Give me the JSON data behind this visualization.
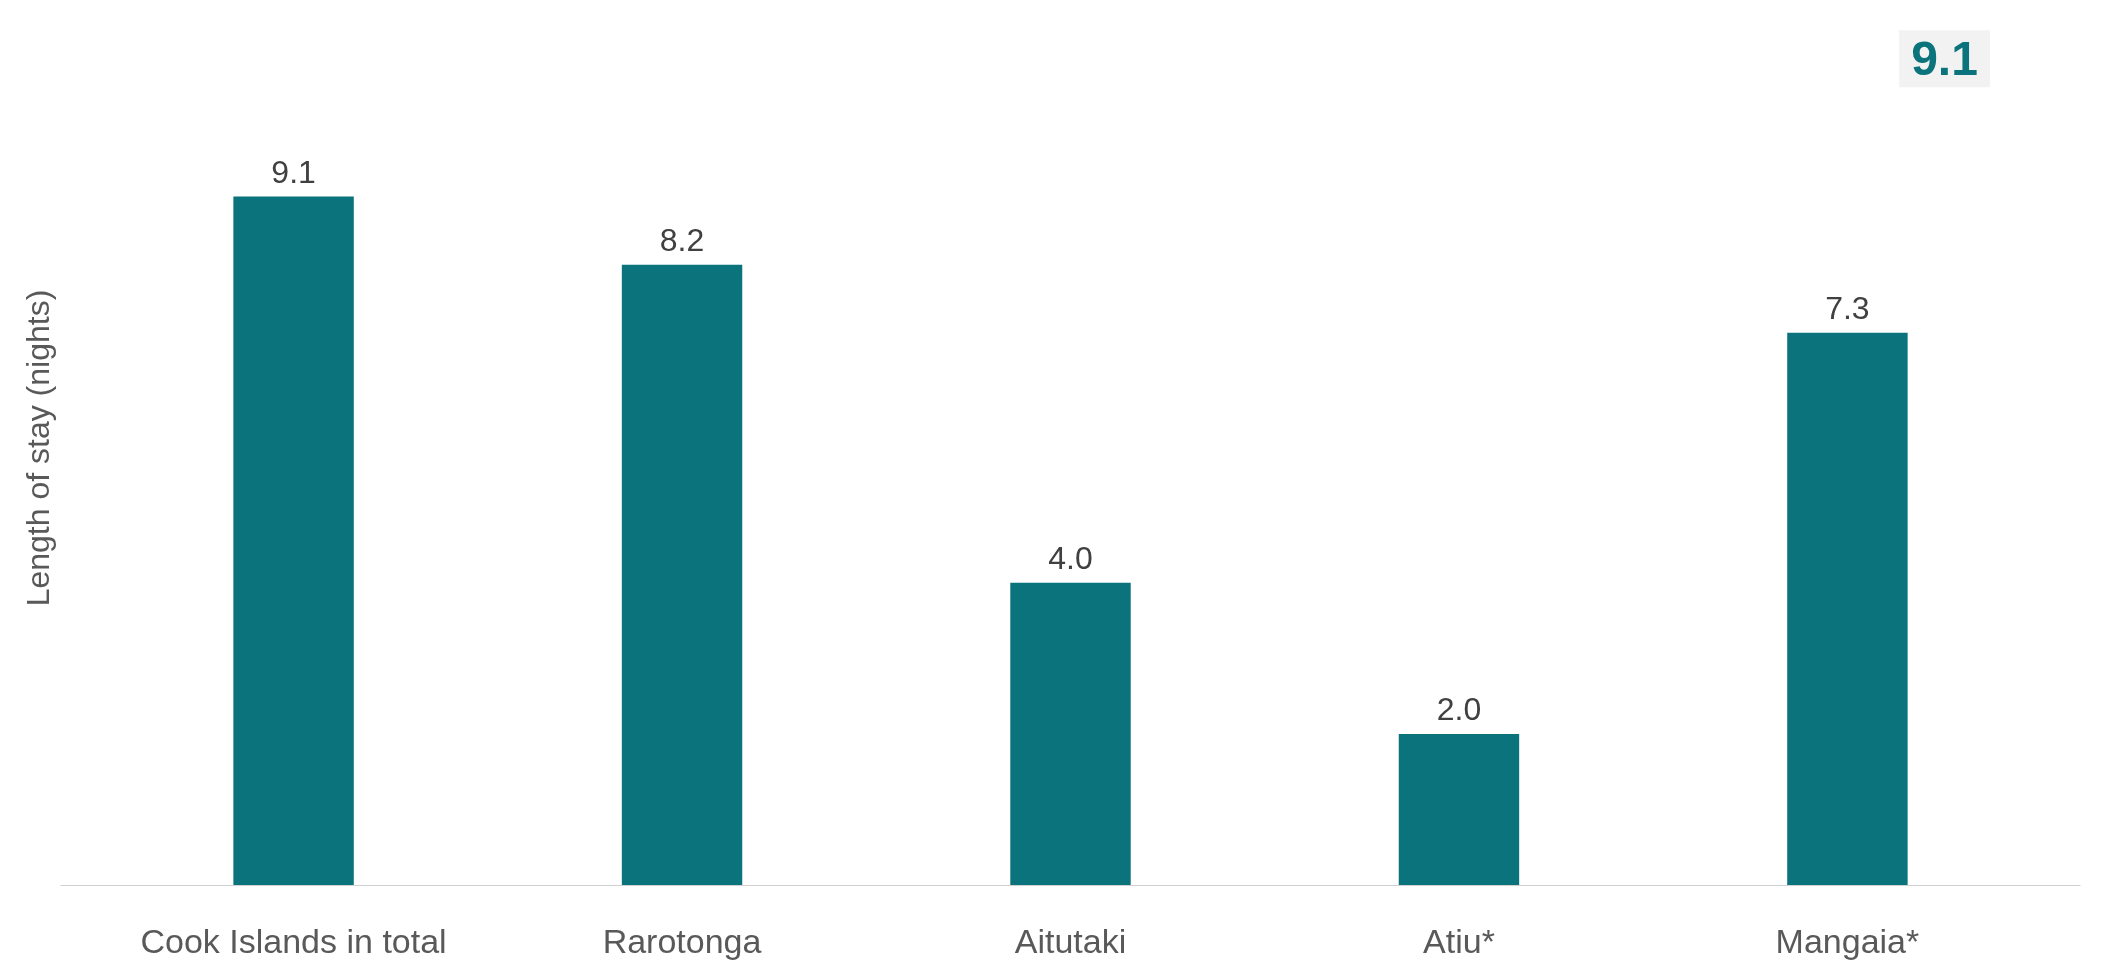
{
  "chart_data": {
    "type": "bar",
    "ylabel": "Length of stay (nights)",
    "categories": [
      "Cook Islands in total",
      "Rarotonga",
      "Aitutaki",
      "Atiu*",
      "Mangaia*"
    ],
    "values": [
      9.1,
      8.2,
      4.0,
      2.0,
      7.3
    ],
    "value_labels": [
      "9.1",
      "8.2",
      "4.0",
      "2.0",
      "7.3"
    ],
    "color": "#0b737b",
    "grid": false,
    "tick_labels": "x",
    "annotations": [
      "9.1"
    ]
  }
}
